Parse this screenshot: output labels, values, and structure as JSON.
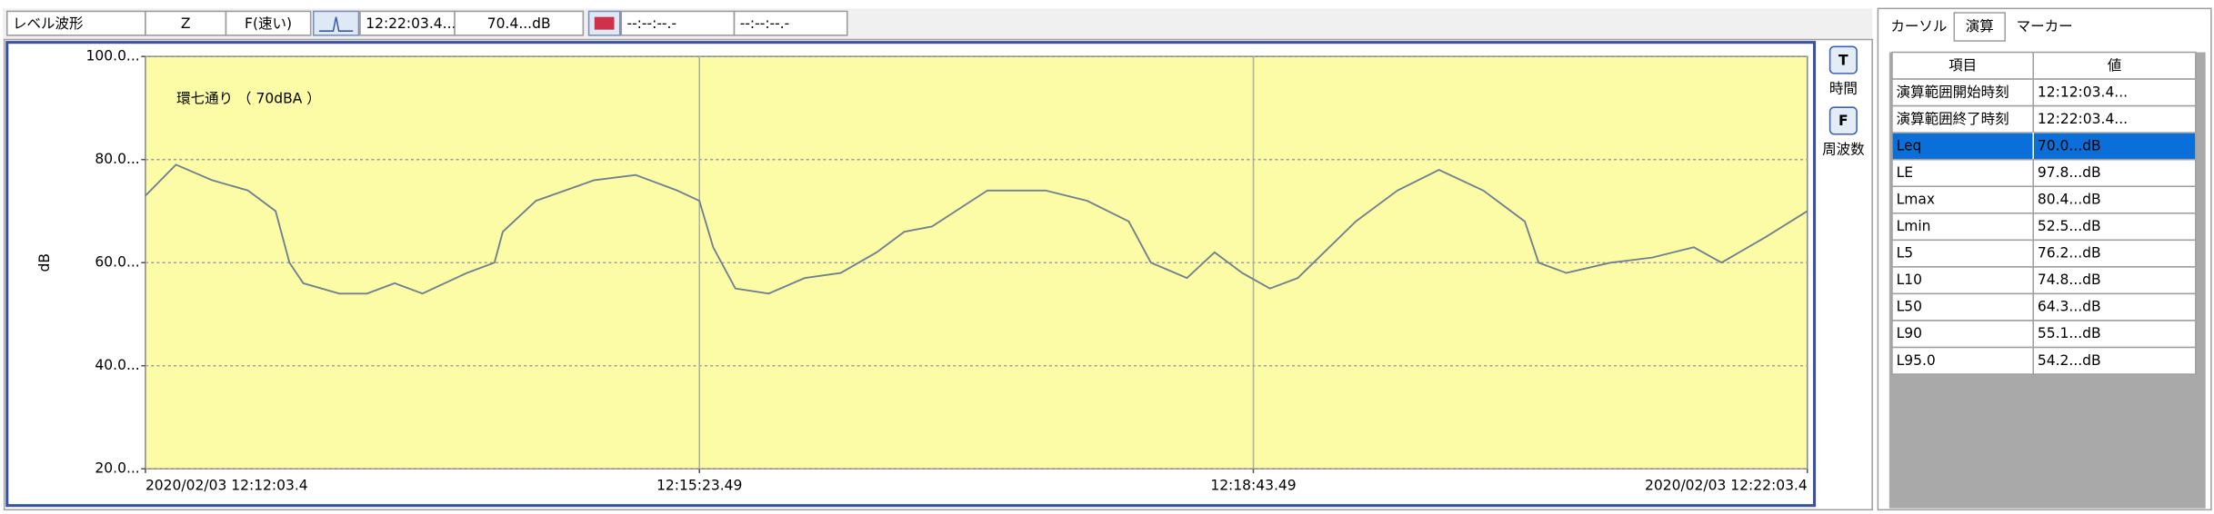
{
  "toolbar": {
    "fields": [
      "レベル波形",
      "Z",
      "F(速い)",
      "12:22:03.4...",
      "70.4...dB",
      "--:--:--.-",
      "--:--:--.-"
    ]
  },
  "chart_data": {
    "type": "line",
    "title": "環七通り （ 70dBA ）",
    "y_label": "dB",
    "x": [
      0,
      11,
      24,
      37,
      47,
      52,
      57,
      70,
      80,
      90,
      100,
      116,
      126,
      129,
      141,
      162,
      177,
      192,
      200,
      205,
      213,
      225,
      238,
      251,
      264,
      274,
      284,
      304,
      325,
      340,
      355,
      363,
      376,
      386,
      396,
      406,
      416,
      437,
      452,
      467,
      483,
      498,
      503,
      513,
      529,
      544,
      559,
      569,
      585,
      600
    ],
    "series": [
      {
        "name": "レベル波形",
        "color": "#6f8190",
        "values": [
          73,
          79,
          76,
          74,
          70,
          60,
          56,
          54,
          54,
          56,
          54,
          58,
          60,
          66,
          72,
          76,
          77,
          74,
          72,
          63,
          55,
          54,
          57,
          58,
          62,
          66,
          67,
          74,
          74,
          72,
          68,
          60,
          57,
          62,
          58,
          55,
          57,
          68,
          74,
          78,
          74,
          68,
          60,
          58,
          60,
          61,
          63,
          60,
          65,
          70
        ]
      }
    ],
    "xlim": [
      0,
      600
    ],
    "xticks": [
      {
        "value": 0,
        "label": "2020/02/03 12:12:03.4"
      },
      {
        "value": 200,
        "label": "12:15:23.49"
      },
      {
        "value": 400,
        "label": "12:18:43.49"
      },
      {
        "value": 600,
        "label": "2020/02/03 12:22:03.4"
      }
    ],
    "ylim": [
      20,
      100
    ],
    "yticks": [
      {
        "value": 20,
        "label": "20.0..."
      },
      {
        "value": 40,
        "label": "40.0..."
      },
      {
        "value": 60,
        "label": "60.0..."
      },
      {
        "value": 80,
        "label": "80.0..."
      },
      {
        "value": 100,
        "label": "100.0..."
      }
    ],
    "grid": true,
    "background": "#fdfca6"
  },
  "side_buttons": [
    {
      "icon": "T",
      "label": "時間"
    },
    {
      "icon": "F",
      "label": "周波数"
    }
  ],
  "panel": {
    "tabs": [
      "カーソル",
      "演算",
      "マーカー"
    ],
    "active_tab": 1,
    "table": {
      "header": [
        "項目",
        "値"
      ],
      "selected_row": 2,
      "rows": [
        [
          "演算範囲開始時刻",
          "12:12:03.4..."
        ],
        [
          "演算範囲終了時刻",
          "12:22:03.4..."
        ],
        [
          "Leq",
          "70.0...dB"
        ],
        [
          "LE",
          "97.8...dB"
        ],
        [
          "Lmax",
          "80.4...dB"
        ],
        [
          "Lmin",
          "52.5...dB"
        ],
        [
          "L5",
          "76.2...dB"
        ],
        [
          "L10",
          "74.8...dB"
        ],
        [
          "L50",
          "64.3...dB"
        ],
        [
          "L90",
          "55.1...dB"
        ],
        [
          "L95.0",
          "54.2...dB"
        ]
      ]
    }
  }
}
